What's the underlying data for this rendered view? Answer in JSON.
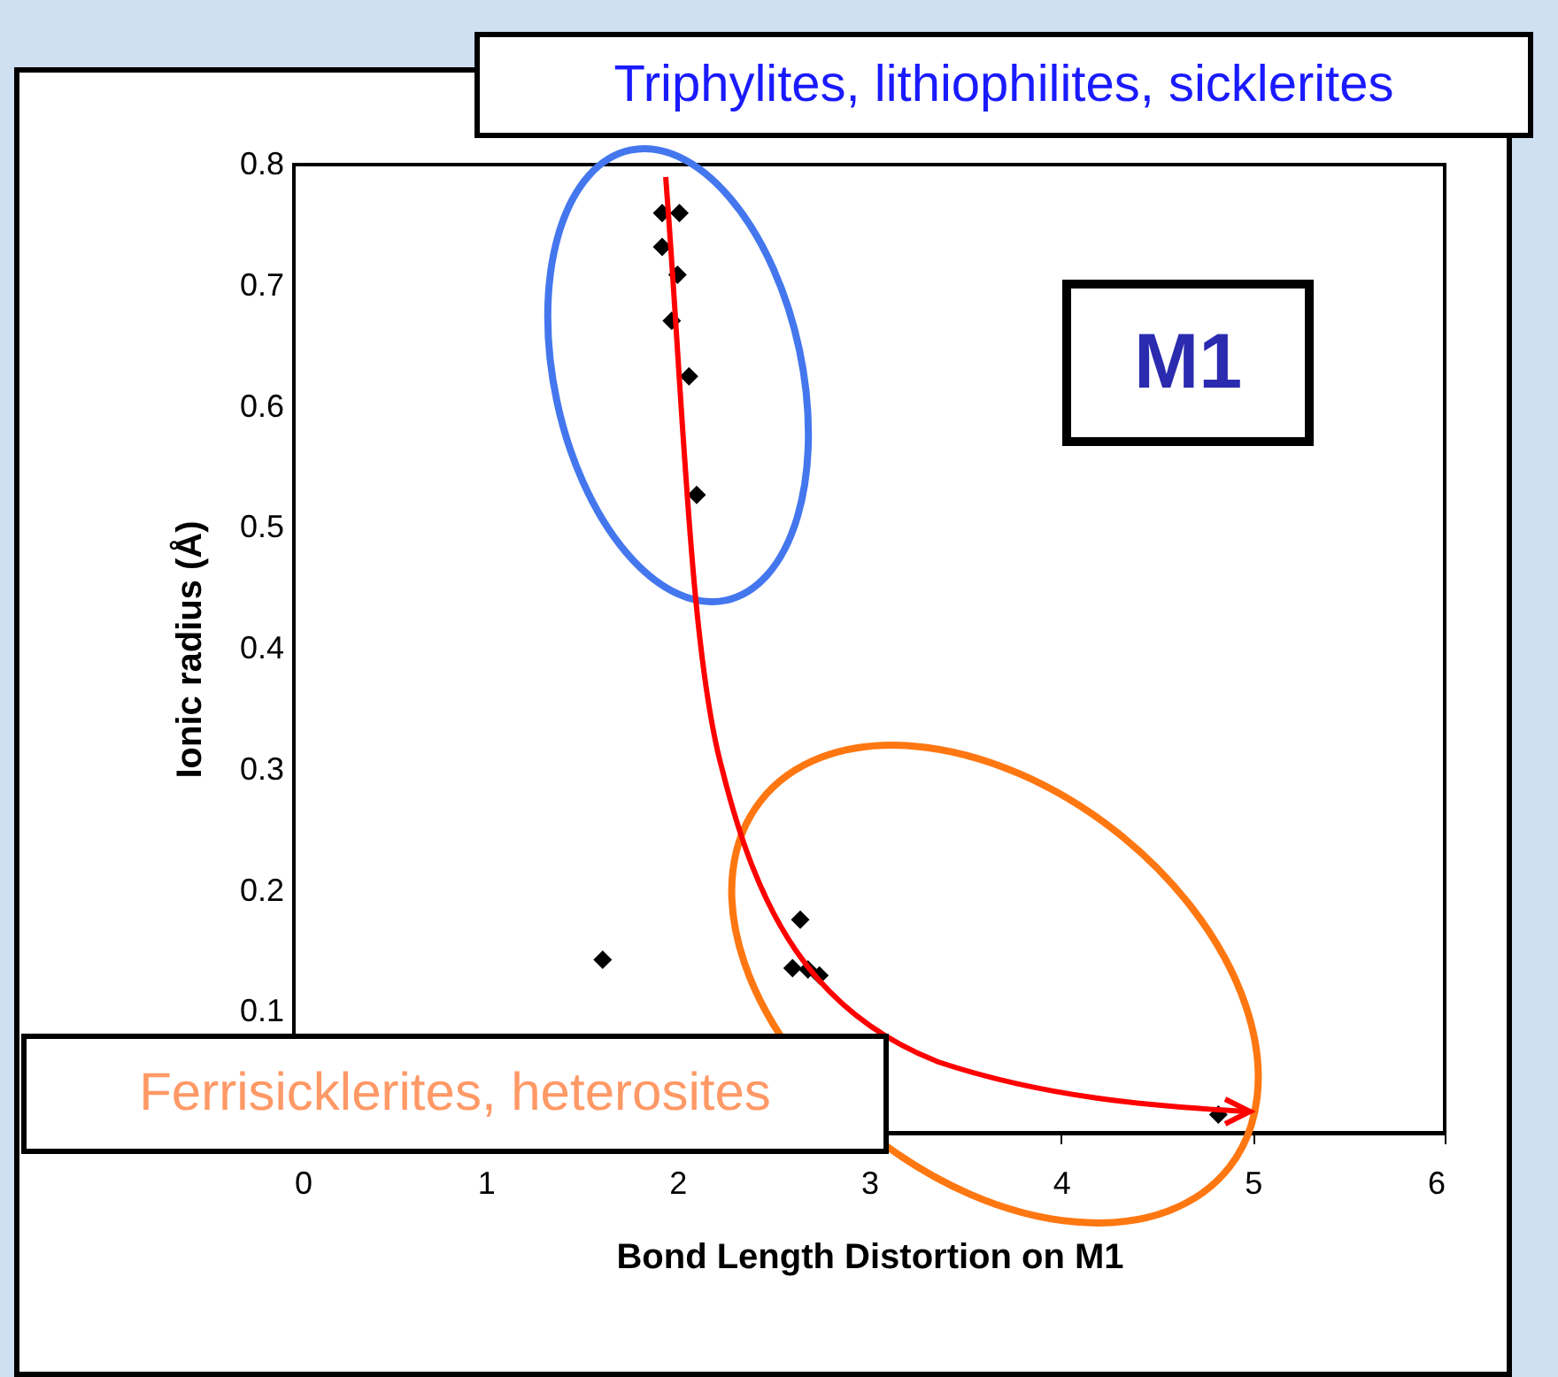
{
  "chart_data": {
    "type": "scatter",
    "xlabel": "Bond Length Distortion on M1",
    "ylabel": "Ionic radius (Å)",
    "annotations": [
      "Triphylites, lithiophilites, sicklerites",
      "M1",
      "Ferrisicklerites, heterosites"
    ],
    "x": [
      1.92,
      2.01,
      1.92,
      2.0,
      1.97,
      2.06,
      2.1,
      1.61,
      2.64,
      2.6,
      2.68,
      2.74,
      4.82
    ],
    "values": [
      0.76,
      0.76,
      0.732,
      0.709,
      0.671,
      0.625,
      0.527,
      0.143,
      0.176,
      0.136,
      0.135,
      0.13,
      0.015
    ],
    "color": "#000000",
    "marker": "diamond",
    "grid": false,
    "xlim": [
      0,
      6
    ],
    "xticks": [
      0,
      1,
      2,
      3,
      4,
      5,
      6
    ],
    "ylim": [
      0,
      0.8
    ],
    "yticks": [
      0.1,
      0.2,
      0.3,
      0.4,
      0.5,
      0.6,
      0.7,
      0.8
    ]
  }
}
